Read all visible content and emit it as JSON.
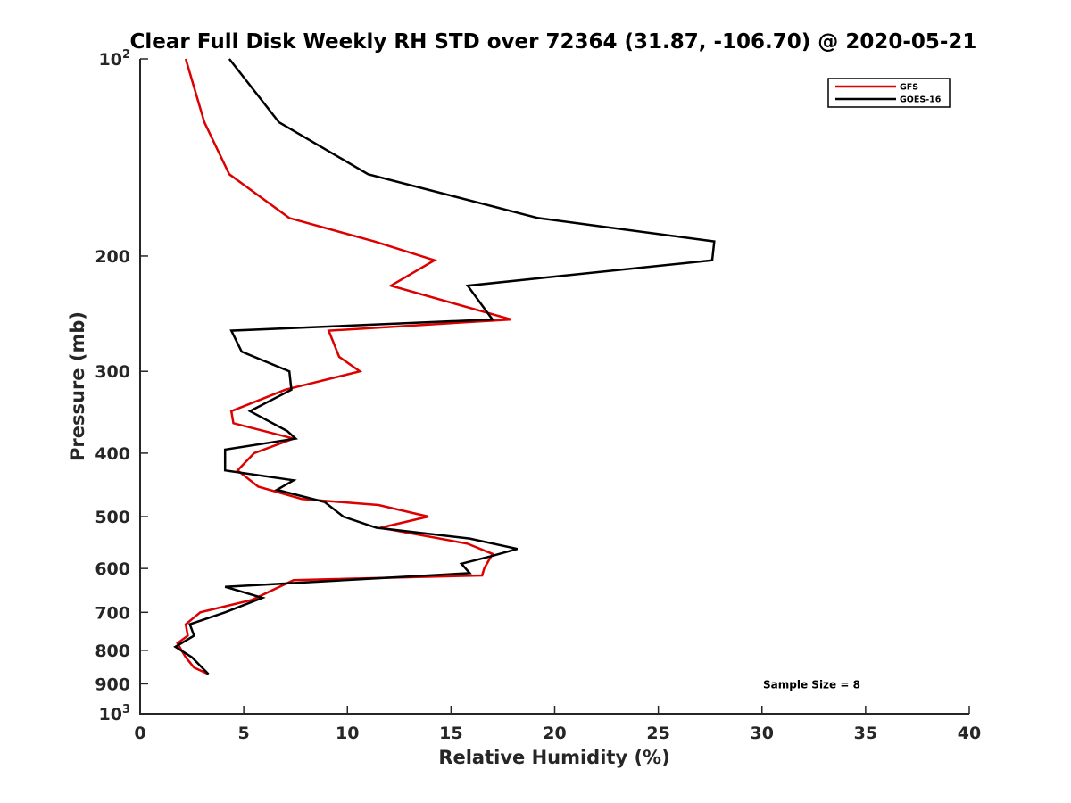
{
  "chart_data": {
    "type": "line",
    "title": "Clear Full Disk Weekly RH STD over 72364 (31.87, -106.70) @ 2020-05-21",
    "xlabel": "Relative Humidity (%)",
    "ylabel": "Pressure (mb)",
    "xlim": [
      0,
      40
    ],
    "ylim": [
      100,
      1000
    ],
    "y_scale": "log",
    "y_reversed": true,
    "grid": false,
    "legend_position": "top-right",
    "x_ticks": [
      0,
      5,
      10,
      15,
      20,
      25,
      30,
      35,
      40
    ],
    "y_ticks": [
      {
        "value": 100,
        "base": "10",
        "exp": "2"
      },
      {
        "value": 200,
        "label": "200"
      },
      {
        "value": 300,
        "label": "300"
      },
      {
        "value": 400,
        "label": "400"
      },
      {
        "value": 500,
        "label": "500"
      },
      {
        "value": 600,
        "label": "600"
      },
      {
        "value": 700,
        "label": "700"
      },
      {
        "value": 800,
        "label": "800"
      },
      {
        "value": 900,
        "label": "900"
      },
      {
        "value": 1000,
        "base": "10",
        "exp": "3"
      }
    ],
    "series": [
      {
        "name": "GFS",
        "color": "#dd0000",
        "points": [
          [
            2.2,
            100
          ],
          [
            3.1,
            125
          ],
          [
            4.3,
            150
          ],
          [
            7.2,
            175
          ],
          [
            11.3,
            190
          ],
          [
            14.2,
            203
          ],
          [
            12.1,
            222
          ],
          [
            17.9,
            250
          ],
          [
            9.1,
            260
          ],
          [
            9.6,
            285
          ],
          [
            10.6,
            300
          ],
          [
            7.0,
            320
          ],
          [
            4.4,
            345
          ],
          [
            4.5,
            360
          ],
          [
            7.4,
            380
          ],
          [
            5.5,
            400
          ],
          [
            4.7,
            425
          ],
          [
            5.7,
            450
          ],
          [
            7.8,
            470
          ],
          [
            11.5,
            480
          ],
          [
            13.9,
            500
          ],
          [
            11.6,
            520
          ],
          [
            15.8,
            550
          ],
          [
            17.0,
            570
          ],
          [
            16.6,
            600
          ],
          [
            16.5,
            615
          ],
          [
            7.4,
            625
          ],
          [
            5.4,
            670
          ],
          [
            2.9,
            700
          ],
          [
            2.2,
            730
          ],
          [
            2.3,
            760
          ],
          [
            1.8,
            780
          ],
          [
            2.2,
            820
          ],
          [
            2.6,
            850
          ],
          [
            3.3,
            870
          ]
        ]
      },
      {
        "name": "GOES-16",
        "color": "#000000",
        "points": [
          [
            4.3,
            100
          ],
          [
            6.7,
            125
          ],
          [
            11.0,
            150
          ],
          [
            19.2,
            175
          ],
          [
            27.7,
            190
          ],
          [
            27.6,
            203
          ],
          [
            15.8,
            222
          ],
          [
            17.0,
            250
          ],
          [
            4.4,
            260
          ],
          [
            4.9,
            280
          ],
          [
            7.2,
            300
          ],
          [
            7.3,
            320
          ],
          [
            5.3,
            345
          ],
          [
            7.1,
            370
          ],
          [
            7.5,
            380
          ],
          [
            4.1,
            395
          ],
          [
            4.1,
            425
          ],
          [
            7.4,
            440
          ],
          [
            6.6,
            455
          ],
          [
            8.9,
            475
          ],
          [
            9.8,
            500
          ],
          [
            11.4,
            520
          ],
          [
            15.9,
            540
          ],
          [
            18.2,
            560
          ],
          [
            16.9,
            575
          ],
          [
            15.5,
            590
          ],
          [
            15.9,
            610
          ],
          [
            4.1,
            640
          ],
          [
            5.9,
            665
          ],
          [
            4.1,
            700
          ],
          [
            2.4,
            730
          ],
          [
            2.6,
            760
          ],
          [
            1.7,
            790
          ],
          [
            2.5,
            820
          ],
          [
            3.3,
            870
          ]
        ]
      }
    ],
    "annotations": [
      {
        "text": "Sample Size = 8",
        "x": 32.4,
        "y": 900
      }
    ]
  }
}
